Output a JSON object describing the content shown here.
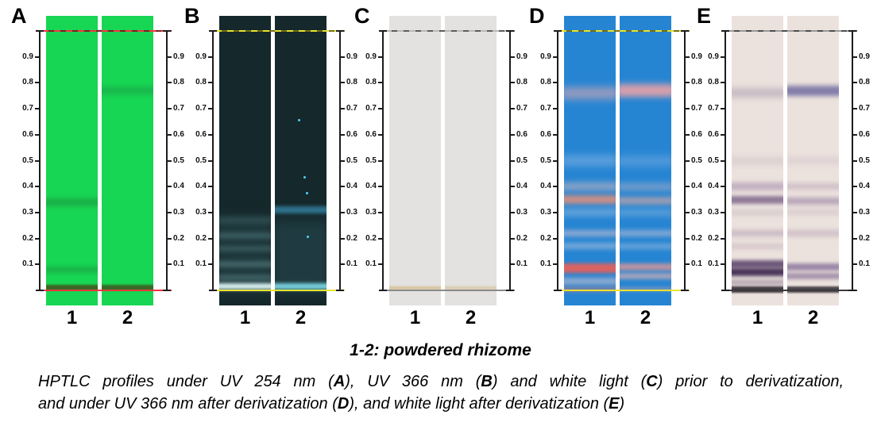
{
  "scale": {
    "tick_labels": [
      "0.9",
      "0.8",
      "0.7",
      "0.6",
      "0.5",
      "0.4",
      "0.3",
      "0.2",
      "0.1"
    ]
  },
  "panels": [
    {
      "label": "A",
      "plate_color": "#17d653",
      "front_line_color": "#f5333d",
      "origin_line_color": "#f5333d",
      "lanes": [
        {
          "number": "1",
          "bands": [
            {
              "rf": 0.34,
              "height": 10,
              "color": "rgba(30,120,55,0.40)",
              "blur": 3
            },
            {
              "rf": 0.08,
              "height": 8,
              "color": "rgba(30,115,55,0.35)",
              "blur": 3
            },
            {
              "rf": 0.012,
              "height": 7,
              "color": "rgba(70,70,25,0.80)",
              "blur": 1
            }
          ]
        },
        {
          "number": "2",
          "bands": [
            {
              "rf": 0.77,
              "height": 10,
              "color": "rgba(30,120,60,0.30)",
              "blur": 3
            },
            {
              "rf": 0.012,
              "height": 7,
              "color": "rgba(70,70,25,0.75)",
              "blur": 1
            }
          ]
        }
      ]
    },
    {
      "label": "B",
      "plate_color": "#15282b",
      "front_line_color": "#e9e42c",
      "origin_line_color": "#e9e42c",
      "lanes": [
        {
          "number": "1",
          "bands": [
            {
              "rf": 0.14,
              "height": 95,
              "color": "rgba(120,200,210,0.10)",
              "blur": 8
            },
            {
              "rf": 0.27,
              "height": 9,
              "color": "rgba(140,215,220,0.14)",
              "blur": 3
            },
            {
              "rf": 0.21,
              "height": 8,
              "color": "rgba(150,220,225,0.22)",
              "blur": 3
            },
            {
              "rf": 0.16,
              "height": 7,
              "color": "rgba(150,220,225,0.20)",
              "blur": 3
            },
            {
              "rf": 0.1,
              "height": 8,
              "color": "rgba(165,230,235,0.26)",
              "blur": 3
            },
            {
              "rf": 0.05,
              "height": 8,
              "color": "rgba(165,230,235,0.24)",
              "blur": 3
            },
            {
              "rf": 0.015,
              "height": 8,
              "color": "rgba(225,250,250,0.95)",
              "blur": 2
            }
          ]
        },
        {
          "number": "2",
          "bands": [
            {
              "rf": 0.31,
              "height": 9,
              "color": "rgba(70,175,220,0.55)",
              "blur": 2
            },
            {
              "rf": 0.13,
              "height": 88,
              "color": "rgba(100,190,215,0.13)",
              "blur": 8
            },
            {
              "rf": 0.015,
              "height": 8,
              "color": "rgba(130,225,240,0.90)",
              "blur": 2
            }
          ],
          "dots": [
            {
              "rf": 0.66,
              "dx": 0.45
            },
            {
              "rf": 0.44,
              "dx": 0.55
            },
            {
              "rf": 0.38,
              "dx": 0.6
            },
            {
              "rf": 0.21,
              "dx": 0.62
            }
          ]
        }
      ]
    },
    {
      "label": "C",
      "plate_color": "#e3e2e0",
      "front_line_color": "#b9b9b9",
      "origin_line_color": "#8a8a8a",
      "lanes": [
        {
          "number": "1",
          "bands": [
            {
              "rf": 0.008,
              "height": 4,
              "color": "rgba(205,165,95,0.55)",
              "blur": 1
            }
          ]
        },
        {
          "number": "2",
          "bands": [
            {
              "rf": 0.008,
              "height": 4,
              "color": "rgba(205,165,95,0.38)",
              "blur": 1
            }
          ]
        }
      ]
    },
    {
      "label": "D",
      "plate_color": "#2685d3",
      "front_line_color": "#e9e42c",
      "origin_line_color": "#e9e42c",
      "lanes": [
        {
          "number": "1",
          "bands": [
            {
              "rf": 0.76,
              "height": 15,
              "color": "rgba(245,175,175,0.55)",
              "blur": 5
            },
            {
              "rf": 0.5,
              "height": 13,
              "color": "rgba(225,225,245,0.30)",
              "blur": 5
            },
            {
              "rf": 0.4,
              "height": 10,
              "color": "rgba(248,195,185,0.50)",
              "blur": 4
            },
            {
              "rf": 0.35,
              "height": 11,
              "color": "rgba(242,145,115,0.80)",
              "blur": 3
            },
            {
              "rf": 0.3,
              "height": 9,
              "color": "rgba(230,225,235,0.35)",
              "blur": 4
            },
            {
              "rf": 0.22,
              "height": 8,
              "color": "rgba(240,205,210,0.50)",
              "blur": 3
            },
            {
              "rf": 0.17,
              "height": 8,
              "color": "rgba(232,218,228,0.40)",
              "blur": 3
            },
            {
              "rf": 0.085,
              "height": 12,
              "color": "rgba(238,95,85,0.90)",
              "blur": 2
            },
            {
              "rf": 0.035,
              "height": 9,
              "color": "rgba(242,205,205,0.50)",
              "blur": 3
            },
            {
              "rf": 0.004,
              "height": 6,
              "color": "rgba(205,125,125,0.55)",
              "blur": 2
            }
          ]
        },
        {
          "number": "2",
          "bands": [
            {
              "rf": 0.77,
              "height": 16,
              "color": "rgba(248,165,165,0.85)",
              "blur": 4
            },
            {
              "rf": 0.5,
              "height": 12,
              "color": "rgba(225,225,245,0.25)",
              "blur": 5
            },
            {
              "rf": 0.4,
              "height": 9,
              "color": "rgba(244,195,190,0.40)",
              "blur": 4
            },
            {
              "rf": 0.345,
              "height": 10,
              "color": "rgba(243,175,155,0.55)",
              "blur": 3
            },
            {
              "rf": 0.3,
              "height": 8,
              "color": "rgba(230,225,235,0.30)",
              "blur": 4
            },
            {
              "rf": 0.22,
              "height": 8,
              "color": "rgba(240,208,212,0.45)",
              "blur": 3
            },
            {
              "rf": 0.17,
              "height": 7,
              "color": "rgba(232,220,230,0.35)",
              "blur": 3
            },
            {
              "rf": 0.09,
              "height": 9,
              "color": "rgba(243,152,142,0.70)",
              "blur": 2
            },
            {
              "rf": 0.055,
              "height": 8,
              "color": "rgba(243,182,172,0.60)",
              "blur": 2
            },
            {
              "rf": 0.004,
              "height": 5,
              "color": "rgba(222,165,165,0.45)",
              "blur": 2
            }
          ]
        }
      ]
    },
    {
      "label": "E",
      "plate_color": "#ece2dd",
      "front_line_color": "#9a9a9a",
      "origin_line_color": "#3a3a3a",
      "lanes": [
        {
          "number": "1",
          "bands": [
            {
              "rf": 0.76,
              "height": 12,
              "color": "rgba(130,115,150,0.35)",
              "blur": 4
            },
            {
              "rf": 0.5,
              "height": 10,
              "color": "rgba(155,135,160,0.20)",
              "blur": 4
            },
            {
              "rf": 0.4,
              "height": 10,
              "color": "rgba(130,100,150,0.40)",
              "blur": 3
            },
            {
              "rf": 0.35,
              "height": 10,
              "color": "rgba(98,68,118,0.65)",
              "blur": 2
            },
            {
              "rf": 0.3,
              "height": 8,
              "color": "rgba(145,125,155,0.20)",
              "blur": 3
            },
            {
              "rf": 0.22,
              "height": 8,
              "color": "rgba(142,112,152,0.35)",
              "blur": 3
            },
            {
              "rf": 0.17,
              "height": 7,
              "color": "rgba(152,122,156,0.25)",
              "blur": 3
            },
            {
              "rf": 0.1,
              "height": 10,
              "color": "rgba(78,52,98,0.80)",
              "blur": 2
            },
            {
              "rf": 0.07,
              "height": 10,
              "color": "rgba(58,36,76,0.90)",
              "blur": 2
            },
            {
              "rf": 0.03,
              "height": 8,
              "color": "rgba(120,100,130,0.40)",
              "blur": 2
            },
            {
              "rf": 0.004,
              "height": 8,
              "color": "rgba(48,42,52,0.90)",
              "blur": 1
            }
          ]
        },
        {
          "number": "2",
          "bands": [
            {
              "rf": 0.77,
              "height": 13,
              "color": "rgba(96,92,152,0.75)",
              "blur": 3
            },
            {
              "rf": 0.5,
              "height": 9,
              "color": "rgba(155,135,160,0.18)",
              "blur": 4
            },
            {
              "rf": 0.4,
              "height": 8,
              "color": "rgba(142,112,152,0.30)",
              "blur": 3
            },
            {
              "rf": 0.345,
              "height": 9,
              "color": "rgba(122,92,142,0.45)",
              "blur": 3
            },
            {
              "rf": 0.3,
              "height": 7,
              "color": "rgba(152,132,160,0.20)",
              "blur": 3
            },
            {
              "rf": 0.22,
              "height": 8,
              "color": "rgba(146,116,156,0.30)",
              "blur": 3
            },
            {
              "rf": 0.09,
              "height": 9,
              "color": "rgba(102,76,132,0.60)",
              "blur": 2
            },
            {
              "rf": 0.055,
              "height": 8,
              "color": "rgba(112,86,136,0.55)",
              "blur": 2
            },
            {
              "rf": 0.004,
              "height": 8,
              "color": "rgba(48,42,52,0.85)",
              "blur": 1
            }
          ]
        }
      ]
    }
  ],
  "caption": {
    "title": "1-2: powdered rhizome",
    "lines": [
      [
        {
          "t": "HPTLC profiles under UV 254 nm ("
        },
        {
          "t": "A",
          "b": true
        },
        {
          "t": "), UV 366 nm ("
        },
        {
          "t": "B",
          "b": true
        },
        {
          "t": ") and white light ("
        },
        {
          "t": "C",
          "b": true
        },
        {
          "t": ") prior to derivatization,"
        }
      ],
      [
        {
          "t": "and under UV 366 nm after derivatization ("
        },
        {
          "t": "D",
          "b": true
        },
        {
          "t": "), and white light after derivatization ("
        },
        {
          "t": "E",
          "b": true
        },
        {
          "t": ")"
        }
      ]
    ]
  }
}
